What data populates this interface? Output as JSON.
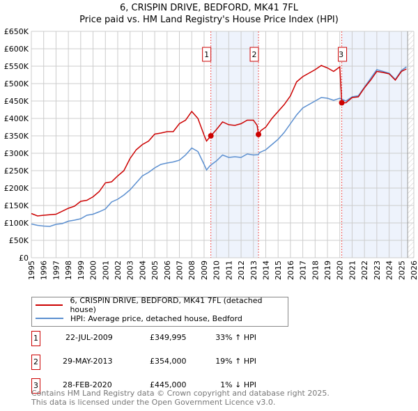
{
  "title": "6, CRISPIN DRIVE, BEDFORD, MK41 7FL",
  "subtitle": "Price paid vs. HM Land Registry's House Price Index (HPI)",
  "chart_data": {
    "type": "line",
    "title": "6, CRISPIN DRIVE, BEDFORD, MK41 7FL",
    "subtitle": "Price paid vs. HM Land Registry's House Price Index (HPI)",
    "xlim": [
      1995,
      2026
    ],
    "ylim": [
      0,
      650000
    ],
    "x_ticks": [
      "1995",
      "1996",
      "1997",
      "1998",
      "1999",
      "2000",
      "2001",
      "2002",
      "2003",
      "2004",
      "2005",
      "2006",
      "2007",
      "2008",
      "2009",
      "2010",
      "2011",
      "2012",
      "2013",
      "2014",
      "2015",
      "2016",
      "2017",
      "2018",
      "2019",
      "2020",
      "2021",
      "2022",
      "2023",
      "2024",
      "2025",
      "2026"
    ],
    "y_ticks": [
      {
        "v": 0,
        "l": "£0"
      },
      {
        "v": 50000,
        "l": "£50K"
      },
      {
        "v": 100000,
        "l": "£100K"
      },
      {
        "v": 150000,
        "l": "£150K"
      },
      {
        "v": 200000,
        "l": "£200K"
      },
      {
        "v": 250000,
        "l": "£250K"
      },
      {
        "v": 300000,
        "l": "£300K"
      },
      {
        "v": 350000,
        "l": "£350K"
      },
      {
        "v": 400000,
        "l": "£400K"
      },
      {
        "v": 450000,
        "l": "£450K"
      },
      {
        "v": 500000,
        "l": "£500K"
      },
      {
        "v": 550000,
        "l": "£550K"
      },
      {
        "v": 600000,
        "l": "£600K"
      },
      {
        "v": 650000,
        "l": "£650K"
      }
    ],
    "grid": true,
    "shaded_periods": [
      [
        2009.55,
        2013.41
      ],
      [
        2020.16,
        2025.5
      ]
    ],
    "series": [
      {
        "name": "6, CRISPIN DRIVE, BEDFORD, MK41 7FL (detached house)",
        "color": "#cc0000",
        "x": [
          1995,
          1995.5,
          1996,
          1997,
          1998,
          1998.5,
          1999,
          1999.5,
          2000,
          2000.5,
          2001,
          2001.5,
          2002,
          2002.5,
          2003,
          2003.5,
          2004,
          2004.5,
          2005,
          2005.5,
          2006,
          2006.5,
          2007,
          2007.5,
          2008,
          2008.5,
          2009,
          2009.2,
          2009.55,
          2010,
          2010.5,
          2011,
          2011.5,
          2012,
          2012.5,
          2013,
          2013.3,
          2013.41,
          2013.6,
          2014,
          2014.5,
          2015,
          2015.5,
          2016,
          2016.5,
          2017,
          2017.5,
          2018,
          2018.5,
          2019,
          2019.5,
          2020,
          2020.16,
          2020.5,
          2021,
          2021.5,
          2022,
          2022.5,
          2023,
          2023.5,
          2024,
          2024.5,
          2025,
          2025.4
        ],
        "y": [
          127000,
          120000,
          122000,
          125000,
          142000,
          148000,
          162000,
          165000,
          175000,
          190000,
          215000,
          218000,
          235000,
          250000,
          285000,
          310000,
          325000,
          335000,
          355000,
          358000,
          362000,
          362000,
          385000,
          395000,
          420000,
          400000,
          352000,
          335000,
          350000,
          368000,
          390000,
          382000,
          380000,
          385000,
          395000,
          395000,
          380000,
          354000,
          365000,
          375000,
          400000,
          420000,
          440000,
          465000,
          505000,
          520000,
          530000,
          540000,
          552000,
          545000,
          535000,
          548000,
          445000,
          445000,
          460000,
          462000,
          488000,
          510000,
          535000,
          532000,
          528000,
          510000,
          535000,
          542000
        ]
      },
      {
        "name": "HPI: Average price, detached house, Bedford",
        "color": "#5b8fd0",
        "x": [
          1995,
          1995.5,
          1996,
          1996.5,
          1997,
          1997.5,
          1998,
          1998.5,
          1999,
          1999.5,
          2000,
          2000.5,
          2001,
          2001.5,
          2002,
          2002.5,
          2003,
          2003.5,
          2004,
          2004.5,
          2005,
          2005.5,
          2006,
          2006.5,
          2007,
          2007.5,
          2008,
          2008.5,
          2009,
          2009.2,
          2009.5,
          2010,
          2010.5,
          2011,
          2011.5,
          2012,
          2012.5,
          2013,
          2013.4,
          2013.5,
          2014,
          2014.5,
          2015,
          2015.5,
          2016,
          2016.5,
          2017,
          2017.5,
          2018,
          2018.5,
          2019,
          2019.5,
          2020,
          2020.5,
          2021,
          2021.5,
          2022,
          2022.5,
          2023,
          2023.5,
          2024,
          2024.5,
          2025,
          2025.4
        ],
        "y": [
          97000,
          93000,
          91000,
          90000,
          96000,
          98000,
          105000,
          108000,
          112000,
          122000,
          125000,
          132000,
          140000,
          160000,
          168000,
          180000,
          195000,
          215000,
          235000,
          245000,
          258000,
          268000,
          272000,
          275000,
          280000,
          295000,
          315000,
          305000,
          268000,
          252000,
          265000,
          278000,
          295000,
          288000,
          290000,
          288000,
          298000,
          295000,
          296000,
          302000,
          310000,
          325000,
          340000,
          360000,
          385000,
          410000,
          430000,
          440000,
          450000,
          460000,
          458000,
          452000,
          458000,
          450000,
          462000,
          465000,
          490000,
          515000,
          540000,
          535000,
          530000,
          512000,
          538000,
          548000
        ]
      }
    ],
    "sales": [
      {
        "id": "1",
        "x": 2009.55,
        "price": 349995,
        "date": "22-JUL-2009",
        "price_label": "£349,995",
        "hpi": "33% ↑ HPI"
      },
      {
        "id": "2",
        "x": 2013.41,
        "price": 354000,
        "date": "29-MAY-2013",
        "price_label": "£354,000",
        "hpi": "19% ↑ HPI"
      },
      {
        "id": "3",
        "x": 2020.16,
        "price": 445000,
        "date": "28-FEB-2020",
        "price_label": "£445,000",
        "hpi": "1% ↓ HPI"
      }
    ]
  },
  "legend": {
    "property": "6, CRISPIN DRIVE, BEDFORD, MK41 7FL (detached house)",
    "hpi": "HPI: Average price, detached house, Bedford"
  },
  "footer": {
    "line1": "Contains HM Land Registry data © Crown copyright and database right 2025.",
    "line2": "This data is licensed under the Open Government Licence v3.0."
  }
}
